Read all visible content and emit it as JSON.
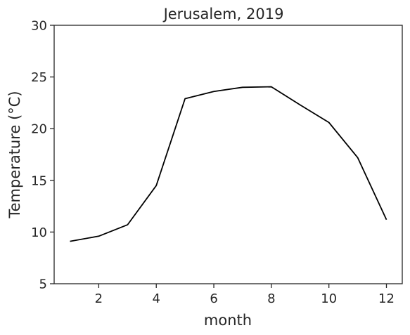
{
  "chart_data": {
    "type": "line",
    "title": "Jerusalem, 2019",
    "xlabel": "month",
    "ylabel": "Temperature (°C)",
    "xlim": [
      0.45,
      12.55
    ],
    "ylim": [
      5,
      30
    ],
    "xticks": [
      2,
      4,
      6,
      8,
      10,
      12
    ],
    "yticks": [
      5,
      10,
      15,
      20,
      25,
      30
    ],
    "grid": false,
    "x": [
      1,
      2,
      3,
      4,
      5,
      6,
      7,
      8,
      9,
      10,
      11,
      12
    ],
    "series": [
      {
        "values": [
          9.1,
          9.6,
          10.7,
          14.5,
          22.9,
          23.6,
          24.0,
          24.05,
          22.3,
          20.6,
          17.2,
          11.2
        ],
        "color": "#000000"
      }
    ]
  }
}
